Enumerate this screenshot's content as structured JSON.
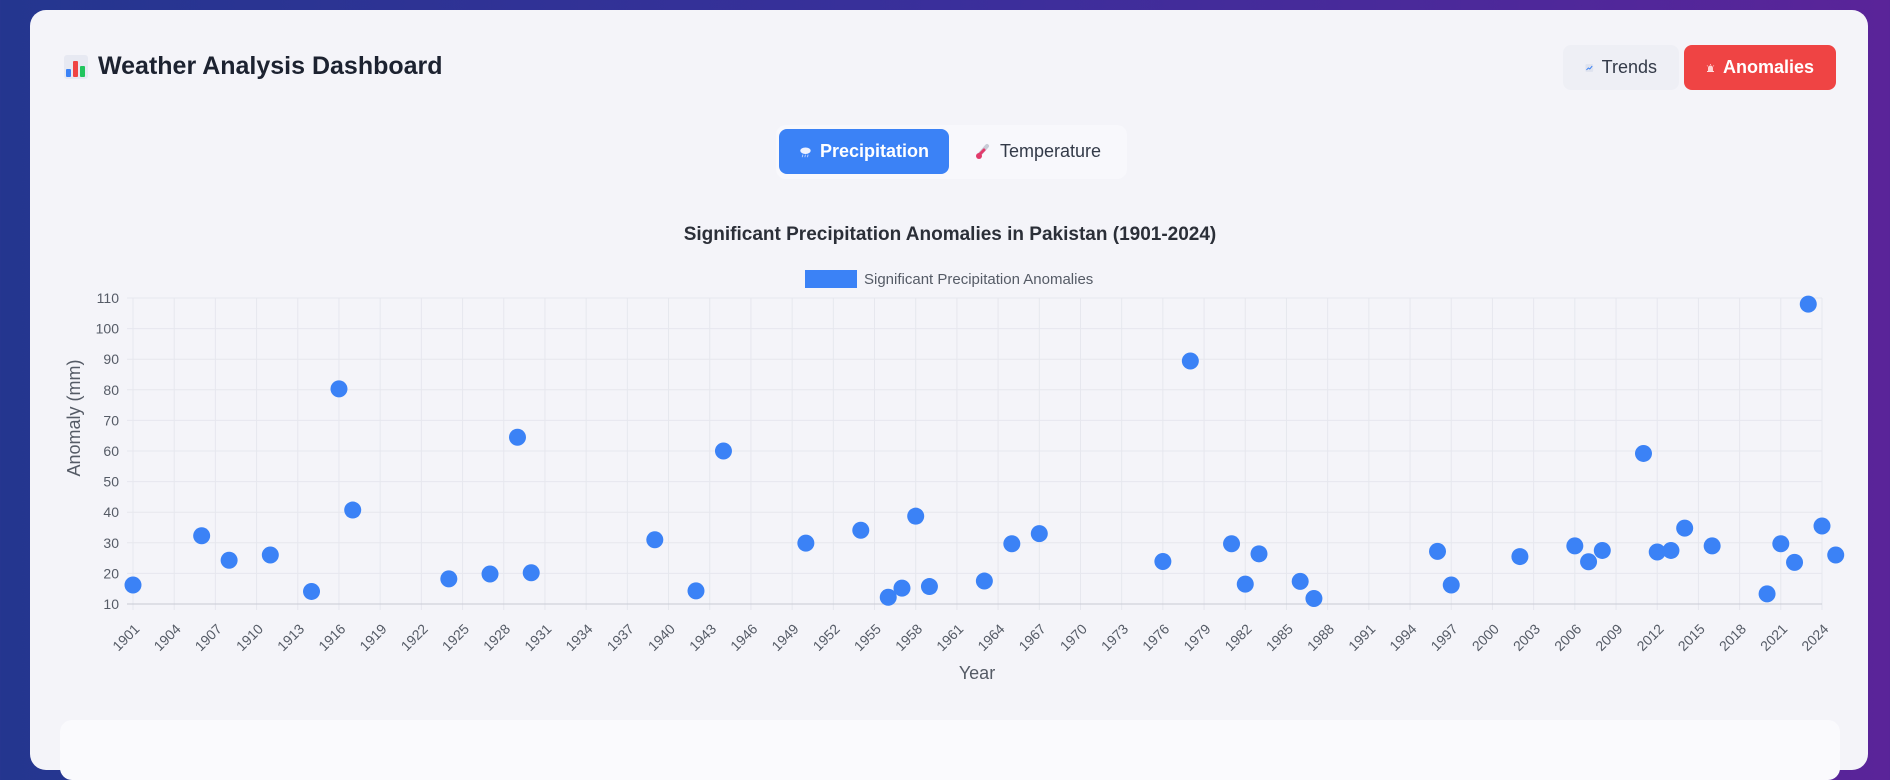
{
  "header": {
    "title": "Weather Analysis Dashboard",
    "trends_label": "Trends",
    "anomalies_label": "Anomalies",
    "icons": {
      "title": "bar-chart-icon",
      "trends": "trend-line-icon",
      "anomalies": "siren-icon"
    }
  },
  "toggle": {
    "precipitation_label": "Precipitation",
    "temperature_label": "Temperature",
    "active": "precipitation",
    "icons": {
      "precipitation": "rain-cloud-icon",
      "temperature": "thermometer-icon"
    }
  },
  "colors": {
    "accent": "#3b82f6",
    "danger": "#ef4444"
  },
  "chart_data": {
    "type": "scatter",
    "title": "Significant Precipitation Anomalies in Pakistan (1901-2024)",
    "xlabel": "Year",
    "ylabel": "Anomaly (mm)",
    "xlim": [
      1901,
      2024
    ],
    "ylim": [
      10,
      110
    ],
    "xticks": [
      1901,
      1904,
      1907,
      1910,
      1913,
      1916,
      1919,
      1922,
      1925,
      1928,
      1931,
      1934,
      1937,
      1940,
      1943,
      1946,
      1949,
      1952,
      1955,
      1958,
      1961,
      1964,
      1967,
      1970,
      1973,
      1976,
      1979,
      1982,
      1985,
      1988,
      1991,
      1994,
      1997,
      2000,
      2003,
      2006,
      2009,
      2012,
      2015,
      2018,
      2021,
      2024
    ],
    "yticks": [
      10,
      20,
      30,
      40,
      50,
      60,
      70,
      80,
      90,
      100,
      110
    ],
    "grid": true,
    "legend": "top-center",
    "series": [
      {
        "name": "Significant Precipitation Anomalies",
        "color": "#3b82f6",
        "points": [
          [
            1901,
            16.2
          ],
          [
            1906,
            32.3
          ],
          [
            1908,
            24.3
          ],
          [
            1911,
            26.0
          ],
          [
            1914,
            14.1
          ],
          [
            1916,
            80.3
          ],
          [
            1917,
            40.7
          ],
          [
            1924,
            18.2
          ],
          [
            1927,
            19.8
          ],
          [
            1929,
            64.5
          ],
          [
            1930,
            20.2
          ],
          [
            1939,
            31.0
          ],
          [
            1942,
            14.3
          ],
          [
            1944,
            60.0
          ],
          [
            1950,
            29.9
          ],
          [
            1954,
            34.1
          ],
          [
            1956,
            12.2
          ],
          [
            1957,
            15.2
          ],
          [
            1958,
            38.7
          ],
          [
            1959,
            15.7
          ],
          [
            1963,
            17.5
          ],
          [
            1965,
            29.7
          ],
          [
            1967,
            33.0
          ],
          [
            1976,
            23.9
          ],
          [
            1978,
            89.4
          ],
          [
            1981,
            29.7
          ],
          [
            1982,
            16.5
          ],
          [
            1983,
            26.4
          ],
          [
            1986,
            17.4
          ],
          [
            1987,
            11.8
          ],
          [
            1996,
            27.2
          ],
          [
            1997,
            16.2
          ],
          [
            2002,
            25.5
          ],
          [
            2006,
            29.0
          ],
          [
            2007,
            23.8
          ],
          [
            2008,
            27.5
          ],
          [
            2011,
            59.2
          ],
          [
            2012,
            27.0
          ],
          [
            2013,
            27.5
          ],
          [
            2014,
            34.8
          ],
          [
            2016,
            29.0
          ],
          [
            2020,
            13.3
          ],
          [
            2021,
            29.7
          ],
          [
            2022,
            23.6
          ],
          [
            2023,
            108.0
          ],
          [
            2024,
            35.5
          ],
          [
            2025,
            26.0
          ]
        ]
      }
    ]
  }
}
